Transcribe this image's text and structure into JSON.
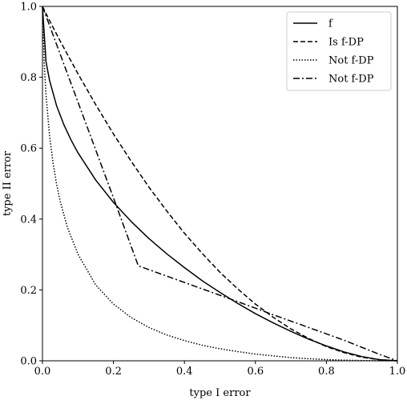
{
  "chart_data": {
    "type": "line",
    "xlabel": "type I error",
    "ylabel": "type II error",
    "xlim": [
      0.0,
      1.0
    ],
    "ylim": [
      0.0,
      1.0
    ],
    "xticks": [
      "0.0",
      "0.2",
      "0.4",
      "0.6",
      "0.8",
      "1.0"
    ],
    "yticks": [
      "0.0",
      "0.2",
      "0.4",
      "0.6",
      "0.8",
      "1.0"
    ],
    "grid": false,
    "legend_position": "top-right",
    "series": [
      {
        "name": "f",
        "style": "solid",
        "color": "#000000",
        "x": [
          0.0,
          0.01,
          0.02,
          0.04,
          0.06,
          0.08,
          0.1,
          0.15,
          0.2,
          0.25,
          0.3,
          0.35,
          0.4,
          0.45,
          0.5,
          0.55,
          0.6,
          0.65,
          0.7,
          0.75,
          0.8,
          0.85,
          0.9,
          0.95,
          1.0
        ],
        "y": [
          1.0,
          0.844,
          0.791,
          0.719,
          0.667,
          0.624,
          0.587,
          0.51,
          0.447,
          0.393,
          0.345,
          0.302,
          0.263,
          0.226,
          0.193,
          0.162,
          0.133,
          0.107,
          0.083,
          0.061,
          0.042,
          0.025,
          0.012,
          0.003,
          0.0
        ]
      },
      {
        "name": "Is f-DP",
        "style": "dashed",
        "color": "#000000",
        "x": [
          0.0,
          0.02,
          0.05,
          0.1,
          0.15,
          0.2,
          0.25,
          0.3,
          0.35,
          0.4,
          0.45,
          0.5,
          0.55,
          0.6,
          0.65,
          0.7,
          0.75,
          0.8,
          0.85,
          0.9,
          0.95,
          1.0
        ],
        "y": [
          1.0,
          0.96,
          0.902,
          0.81,
          0.723,
          0.64,
          0.563,
          0.49,
          0.423,
          0.36,
          0.303,
          0.25,
          0.203,
          0.16,
          0.123,
          0.09,
          0.063,
          0.04,
          0.023,
          0.01,
          0.003,
          0.0
        ]
      },
      {
        "name": "Not f-DP",
        "style": "dotted",
        "color": "#000000",
        "x": [
          0.0,
          0.005,
          0.01,
          0.02,
          0.03,
          0.04,
          0.05,
          0.07,
          0.1,
          0.15,
          0.2,
          0.25,
          0.3,
          0.35,
          0.4,
          0.45,
          0.5,
          0.55,
          0.6,
          0.65,
          0.7,
          0.75,
          0.8,
          0.85,
          0.9,
          0.95,
          1.0
        ],
        "y": [
          1.0,
          0.84,
          0.751,
          0.635,
          0.557,
          0.497,
          0.45,
          0.377,
          0.301,
          0.214,
          0.16,
          0.122,
          0.094,
          0.073,
          0.057,
          0.044,
          0.034,
          0.026,
          0.019,
          0.014,
          0.009,
          0.006,
          0.0035,
          0.0018,
          0.0007,
          0.0002,
          0.0
        ]
      },
      {
        "name": "Not f-DP",
        "style": "dashdot",
        "color": "#000000",
        "x": [
          0.0,
          0.05,
          0.1,
          0.15,
          0.2,
          0.27,
          0.35,
          0.45,
          0.55,
          0.65,
          0.75,
          0.85,
          0.95,
          1.0
        ],
        "y": [
          1.0,
          0.865,
          0.73,
          0.595,
          0.46,
          0.268,
          0.239,
          0.203,
          0.167,
          0.13,
          0.094,
          0.058,
          0.018,
          0.0
        ]
      }
    ]
  }
}
